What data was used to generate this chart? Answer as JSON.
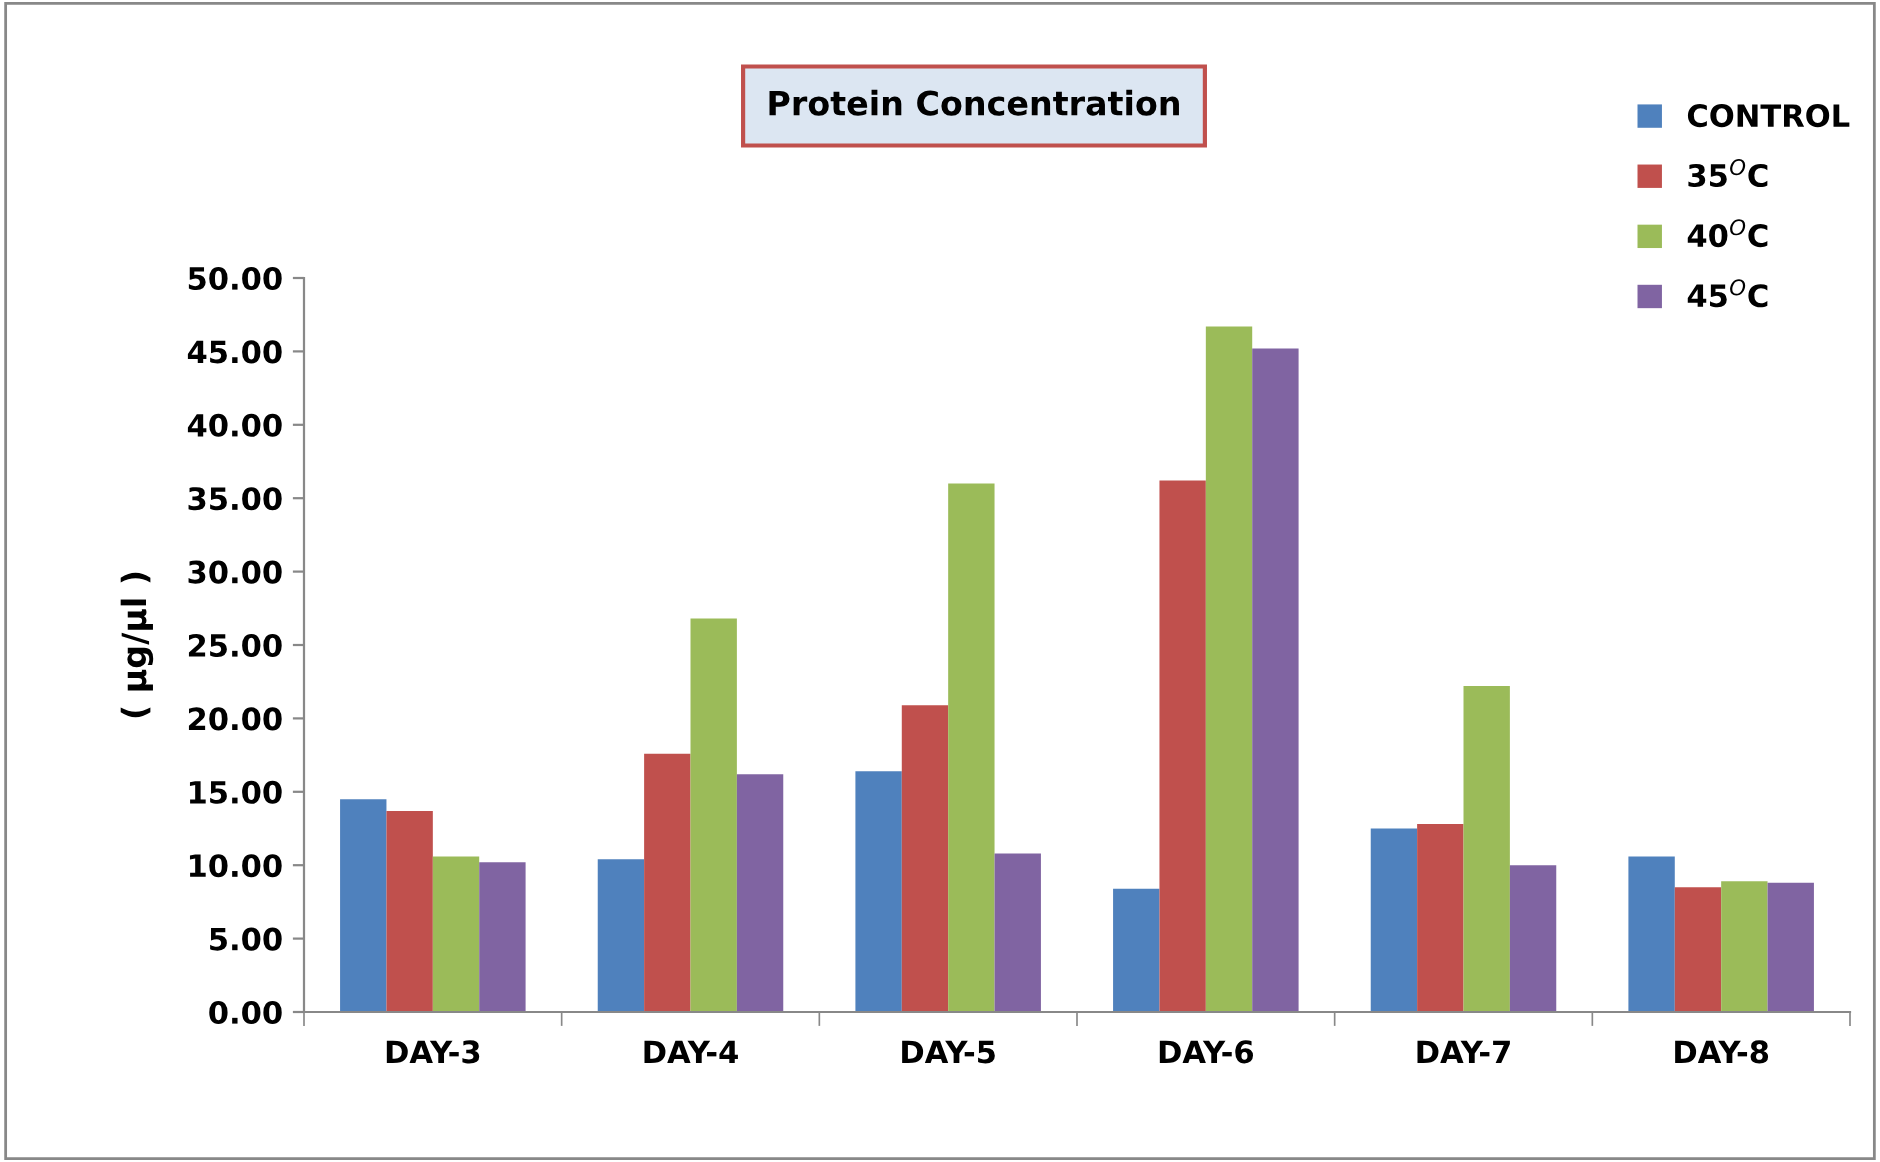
{
  "chart_data": {
    "type": "bar",
    "title": "Protein Concentration",
    "ylabel": "( µg/µl )",
    "categories": [
      "DAY-3",
      "DAY-4",
      "DAY-5",
      "DAY-6",
      "DAY-7",
      "DAY-8"
    ],
    "series": [
      {
        "name": "CONTROL",
        "color": "#4f81bd",
        "values": [
          14.5,
          10.4,
          16.4,
          8.4,
          12.5,
          10.6
        ]
      },
      {
        "name": "35$^{O}$C",
        "color": "#c0504d",
        "values": [
          13.7,
          17.6,
          20.9,
          36.2,
          12.8,
          8.5
        ]
      },
      {
        "name": "40$^{O}$C",
        "color": "#9bbb59",
        "values": [
          10.6,
          26.8,
          36.0,
          46.7,
          22.2,
          8.9
        ]
      },
      {
        "name": "45$^{O}$C",
        "color": "#8064a2",
        "values": [
          10.2,
          16.2,
          10.8,
          45.2,
          10.0,
          8.8
        ]
      }
    ],
    "ylim": [
      0,
      50
    ],
    "yticks": [
      {
        "value": 0,
        "label": "0.00"
      },
      {
        "value": 5,
        "label": "5.00"
      },
      {
        "value": 10,
        "label": "10.00"
      },
      {
        "value": 15,
        "label": "15.00"
      },
      {
        "value": 20,
        "label": "20.00"
      },
      {
        "value": 25,
        "label": "25.00"
      },
      {
        "value": 30,
        "label": "30.00"
      },
      {
        "value": 35,
        "label": "35.00"
      },
      {
        "value": 40,
        "label": "40.00"
      },
      {
        "value": 45,
        "label": "45.00"
      },
      {
        "value": 50,
        "label": "50.00"
      }
    ],
    "grid": false,
    "legend": "top right"
  }
}
